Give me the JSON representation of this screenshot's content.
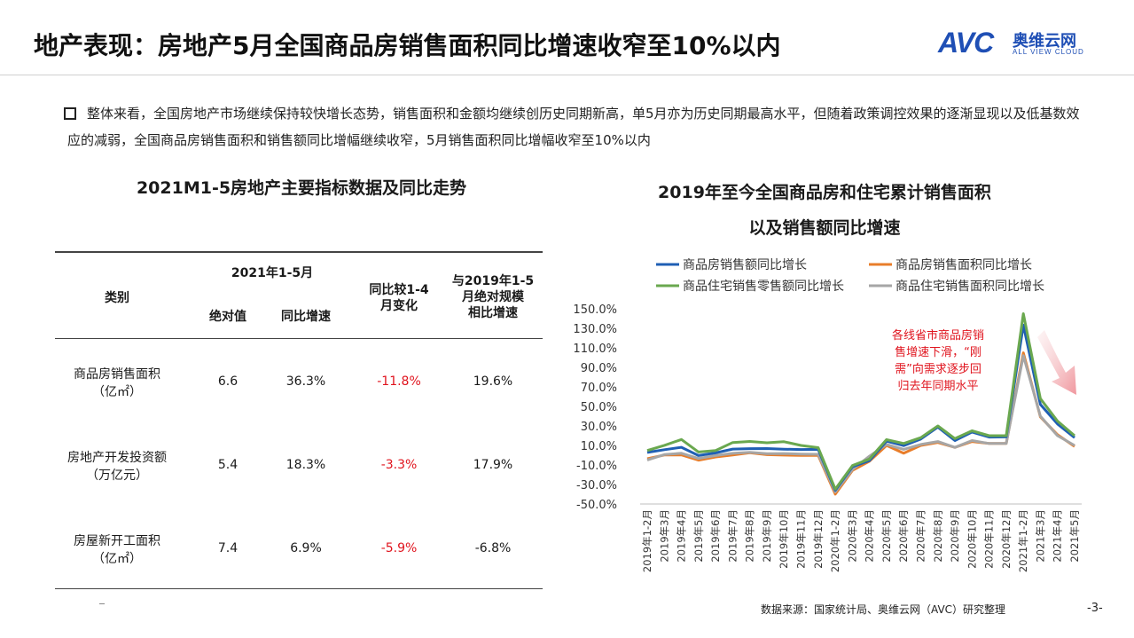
{
  "header": {
    "title": "地产表现：房地产5月全国商品房销售面积同比增速收窄至10%以内",
    "logo_mark": "AVC",
    "logo_cn": "奥维云网",
    "logo_en": "ALL VIEW CLOUD"
  },
  "summary": "整体来看，全国房地产市场继续保持较快增长态势，销售面积和金额均继续创历史同期新高，单5月亦为历史同期最高水平，但随着政策调控效果的逐渐显现以及低基数效应的减弱，全国商品房销售面积和销售额同比增幅继续收窄，5月销售面积同比增幅收窄至10%以内",
  "left_title": "2021M1-5房地产主要指标数据及同比走势",
  "right_title_1": "2019年至今全国商品房和住宅累计销售面积",
  "right_title_2": "以及销售额同比增速",
  "table": {
    "h_category": "类别",
    "h_period": "2021年1-5月",
    "h_abs": "绝对值",
    "h_yoy": "同比增速",
    "h_change": "同比较1-4月变化",
    "h_change_l1": "同比较1-4",
    "h_change_l2": "月变化",
    "h_2019_l1": "与2019年1-5",
    "h_2019_l2": "月绝对规模",
    "h_2019_l3": "相比增速",
    "rows": [
      {
        "name_l1": "商品房销售面积",
        "name_l2": "（亿㎡）",
        "abs": "6.6",
        "yoy": "36.3%",
        "change": "-11.8%",
        "vs2019": "19.6%"
      },
      {
        "name_l1": "房地产开发投资额",
        "name_l2": "（万亿元）",
        "abs": "5.4",
        "yoy": "18.3%",
        "change": "-3.3%",
        "vs2019": "17.9%"
      },
      {
        "name_l1": "房屋新开工面积",
        "name_l2": "（亿㎡）",
        "abs": "7.4",
        "yoy": "6.9%",
        "change": "-5.9%",
        "vs2019": "-6.8%"
      }
    ]
  },
  "chart_data": {
    "type": "line",
    "title": "2019年至今全国商品房和住宅累计销售面积以及销售额同比增速",
    "x": [
      "2019年1-2月",
      "2019年3月",
      "2019年4月",
      "2019年5月",
      "2019年6月",
      "2019年7月",
      "2019年8月",
      "2019年9月",
      "2019年10月",
      "2019年11月",
      "2019年12月",
      "2020年1-2月",
      "2020年3月",
      "2020年4月",
      "2020年5月",
      "2020年6月",
      "2020年7月",
      "2020年8月",
      "2020年9月",
      "2020年10月",
      "2020年11月",
      "2020年12月",
      "2021年1-2月",
      "2021年3月",
      "2021年4月",
      "2021年5月"
    ],
    "y_ticks": [
      "150.0%",
      "130.0%",
      "110.0%",
      "90.0%",
      "70.0%",
      "50.0%",
      "30.0%",
      "10.0%",
      "-10.0%",
      "-30.0%",
      "-50.0%"
    ],
    "ylim": [
      -50,
      150
    ],
    "series": [
      {
        "name": "商品房销售额同比增长",
        "color": "#1f5fb4",
        "values": [
          2.8,
          5.6,
          8.1,
          -0.4,
          2.4,
          6.3,
          6.7,
          6.8,
          6.2,
          5.8,
          6.0,
          -35.9,
          -11.9,
          -5.5,
          14.4,
          9.8,
          16.5,
          28.8,
          15.0,
          23.7,
          18.5,
          18.7,
          133.4,
          52.0,
          32.0,
          18.0
        ]
      },
      {
        "name": "商品房销售面积同比增长",
        "color": "#e87d2a",
        "values": [
          -3.6,
          0.2,
          0.3,
          -5.1,
          -1.8,
          0.2,
          2.5,
          0.5,
          0.1,
          -0.3,
          -0.1,
          -39.9,
          -15.6,
          -6.2,
          10.0,
          2.0,
          10.0,
          13.0,
          8.0,
          14.0,
          12.0,
          12.0,
          104.9,
          39.3,
          21.0,
          9.0
        ]
      },
      {
        "name": "商品住宅销售零售额同比增长",
        "color": "#6aa84f",
        "values": [
          4.8,
          10.1,
          16.1,
          3.3,
          4.8,
          13.0,
          14.1,
          12.7,
          13.8,
          10.0,
          7.7,
          -34.7,
          -10.6,
          -3.9,
          16.0,
          12.0,
          18.0,
          30.0,
          17.0,
          25.0,
          20.0,
          20.0,
          145.0,
          58.0,
          35.0,
          20.0
        ]
      },
      {
        "name": "商品住宅销售面积同比增长",
        "color": "#a6a6a6",
        "values": [
          -4.9,
          0.6,
          2.0,
          -3.4,
          -0.4,
          1.9,
          3.0,
          1.5,
          1.7,
          1.2,
          0.9,
          -37.7,
          -14.7,
          -1.0,
          11.0,
          6.0,
          11.0,
          14.0,
          8.0,
          15.0,
          12.0,
          12.0,
          102.0,
          40.0,
          20.0,
          10.0
        ]
      }
    ],
    "annotation": "各线省市商品房销售增速下滑，“刚需”向需求逐步回归去年同期水平",
    "annotation_lines": [
      "各线省市商品房销",
      "售增速下滑，“刚",
      "需”向需求逐步回",
      "归去年同期水平"
    ],
    "annotation_color": "#e0141e",
    "grid": false,
    "legend": "top"
  },
  "footer": {
    "source": "数据来源：国家统计局、奥维云网（AVC）研究整理",
    "page": "-3-"
  }
}
